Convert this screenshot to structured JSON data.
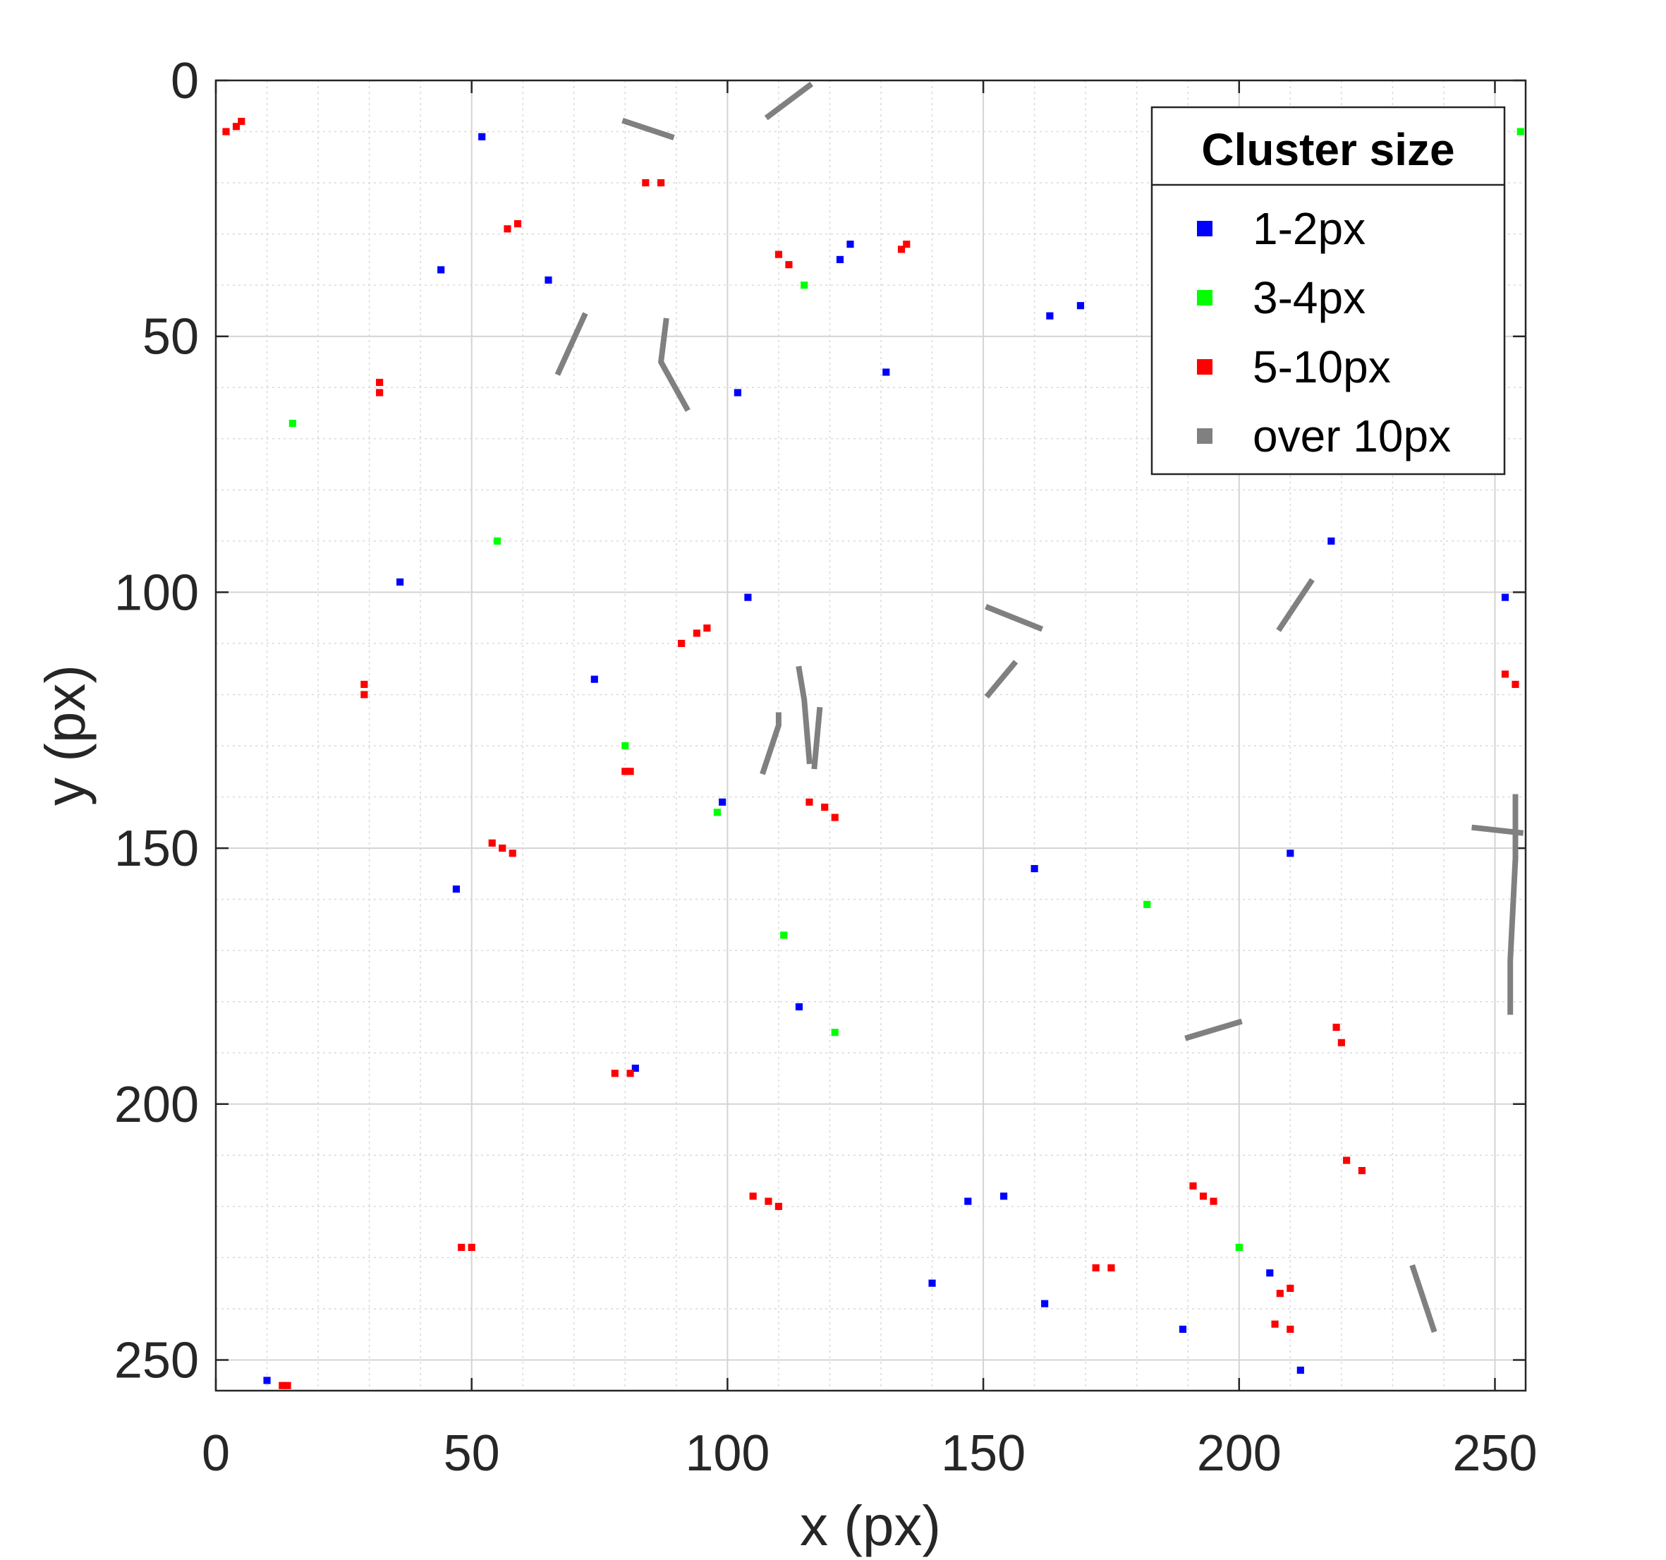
{
  "chart_data": {
    "type": "scatter",
    "title": "",
    "xlabel": "x (px)",
    "ylabel": "y (px)",
    "xlim": [
      0,
      256
    ],
    "ylim": [
      0,
      256
    ],
    "y_reversed": true,
    "xticks": [
      0,
      50,
      100,
      150,
      200,
      250
    ],
    "yticks": [
      0,
      50,
      100,
      150,
      200,
      250
    ],
    "minor_grid_step": 10,
    "grid": true,
    "legend": {
      "title": "Cluster size",
      "placement": "top-right",
      "entries": [
        "1-2px",
        "3-4px",
        "5-10px",
        "over 10px"
      ]
    },
    "colors": {
      "1-2px": "#0000ff",
      "3-4px": "#00ff00",
      "5-10px": "#ff0000",
      "over 10px": "#808080"
    },
    "series": [
      {
        "name": "1-2px",
        "points": [
          [
            52,
            11
          ],
          [
            44,
            37
          ],
          [
            65,
            39
          ],
          [
            102,
            61
          ],
          [
            122,
            35
          ],
          [
            124,
            32
          ],
          [
            131,
            57
          ],
          [
            163,
            46
          ],
          [
            169,
            44
          ],
          [
            36,
            98
          ],
          [
            104,
            101
          ],
          [
            74,
            117
          ],
          [
            99,
            141
          ],
          [
            47,
            158
          ],
          [
            114,
            181
          ],
          [
            82,
            193
          ],
          [
            160,
            154
          ],
          [
            210,
            151
          ],
          [
            218,
            90
          ],
          [
            252,
            101
          ],
          [
            147,
            219
          ],
          [
            154,
            218
          ],
          [
            140,
            235
          ],
          [
            162,
            239
          ],
          [
            189,
            244
          ],
          [
            206,
            233
          ],
          [
            212,
            252
          ],
          [
            10,
            254
          ]
        ]
      },
      {
        "name": "3-4px",
        "points": [
          [
            15,
            67
          ],
          [
            55,
            90
          ],
          [
            115,
            40
          ],
          [
            80,
            130
          ],
          [
            98,
            143
          ],
          [
            111,
            167
          ],
          [
            121,
            186
          ],
          [
            182,
            161
          ],
          [
            200,
            228
          ],
          [
            255,
            10
          ]
        ]
      },
      {
        "name": "5-10px",
        "points": [
          [
            2,
            10
          ],
          [
            4,
            9
          ],
          [
            5,
            8
          ],
          [
            57,
            29
          ],
          [
            59,
            28
          ],
          [
            84,
            20
          ],
          [
            87,
            20
          ],
          [
            110,
            34
          ],
          [
            112,
            36
          ],
          [
            134,
            33
          ],
          [
            135,
            32
          ],
          [
            32,
            59
          ],
          [
            32,
            61
          ],
          [
            29,
            118
          ],
          [
            29,
            120
          ],
          [
            91,
            110
          ],
          [
            94,
            108
          ],
          [
            96,
            107
          ],
          [
            80,
            135
          ],
          [
            81,
            135
          ],
          [
            54,
            149
          ],
          [
            56,
            150
          ],
          [
            58,
            151
          ],
          [
            116,
            141
          ],
          [
            119,
            142
          ],
          [
            121,
            144
          ],
          [
            78,
            194
          ],
          [
            81,
            194
          ],
          [
            48,
            228
          ],
          [
            50,
            228
          ],
          [
            105,
            218
          ],
          [
            108,
            219
          ],
          [
            110,
            220
          ],
          [
            172,
            232
          ],
          [
            175,
            232
          ],
          [
            191,
            216
          ],
          [
            193,
            218
          ],
          [
            195,
            219
          ],
          [
            208,
            237
          ],
          [
            210,
            236
          ],
          [
            207,
            243
          ],
          [
            210,
            244
          ],
          [
            219,
            185
          ],
          [
            220,
            188
          ],
          [
            221,
            211
          ],
          [
            224,
            213
          ],
          [
            252,
            116
          ],
          [
            254,
            118
          ],
          [
            13,
            255
          ],
          [
            14,
            255
          ]
        ]
      },
      {
        "name": "over 10px",
        "segments": [
          [
            [
              80,
              8
            ],
            [
              89,
              11
            ]
          ],
          [
            [
              108,
              7
            ],
            [
              116,
              1
            ]
          ],
          [
            [
              67,
              57
            ],
            [
              72,
              46
            ]
          ],
          [
            [
              88,
              47
            ],
            [
              87,
              55
            ],
            [
              92,
              64
            ]
          ],
          [
            [
              118,
              123
            ],
            [
              117,
              134
            ]
          ],
          [
            [
              107,
              135
            ],
            [
              110,
              126
            ],
            [
              110,
              124
            ]
          ],
          [
            [
              114,
              115
            ],
            [
              115,
              121
            ],
            [
              116,
              133
            ]
          ],
          [
            [
              151,
              103
            ],
            [
              161,
              107
            ]
          ],
          [
            [
              151,
              120
            ],
            [
              156,
              114
            ]
          ],
          [
            [
              208,
              107
            ],
            [
              214,
              98
            ]
          ],
          [
            [
              246,
              146
            ],
            [
              255,
              147
            ]
          ],
          [
            [
              254,
              140
            ],
            [
              254,
              152
            ]
          ],
          [
            [
              254,
              152
            ],
            [
              253,
              172
            ],
            [
              253,
              182
            ]
          ],
          [
            [
              190,
              187
            ],
            [
              200,
              184
            ]
          ],
          [
            [
              234,
              232
            ],
            [
              238,
              244
            ]
          ]
        ]
      }
    ]
  }
}
